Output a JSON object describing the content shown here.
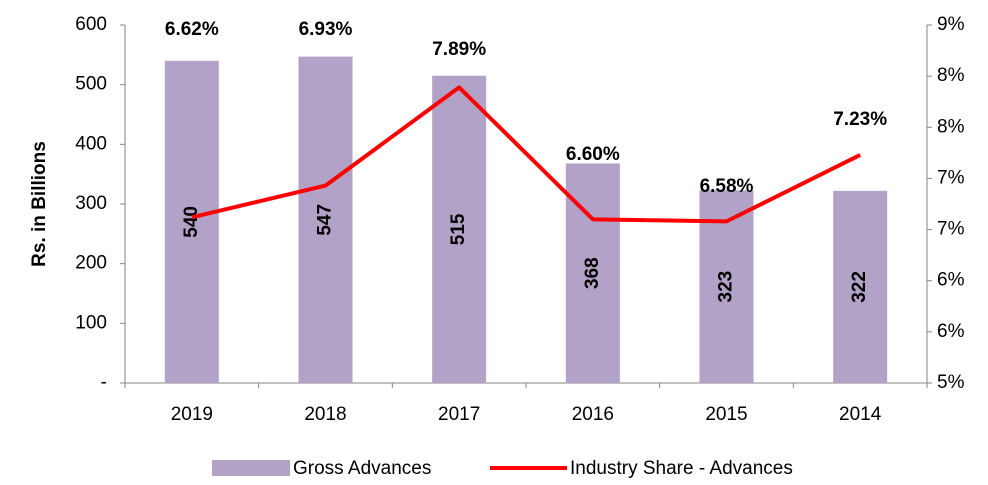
{
  "chart_data": {
    "type": "bar",
    "categories": [
      "2019",
      "2018",
      "2017",
      "2016",
      "2015",
      "2014"
    ],
    "y_label": "Rs. in Billions",
    "series": [
      {
        "name": "Gross Advances",
        "color": "#b3a2c7",
        "values": [
          540,
          547,
          515,
          368,
          323,
          322
        ]
      },
      {
        "name": "Industry Share - Advances",
        "type": "line",
        "axis": "y2",
        "color": "#ff0000",
        "values": [
          6.62,
          6.93,
          7.89,
          6.6,
          6.58,
          7.23
        ],
        "value_labels": [
          "6.62%",
          "6.93%",
          "7.89%",
          "6.60%",
          "6.58%",
          "7.23%"
        ]
      }
    ],
    "ylim": [
      0,
      600
    ],
    "yticks": [
      {
        "value": 0,
        "label": "-"
      },
      100,
      200,
      300,
      400,
      500,
      600
    ],
    "y2lim": [
      5,
      8.5
    ],
    "y2ticks": [
      {
        "value": 5,
        "label": "5%"
      },
      {
        "value": 5.5,
        "label": "6%"
      },
      {
        "value": 6,
        "label": "6%"
      },
      {
        "value": 6.5,
        "label": "7%"
      },
      {
        "value": 7,
        "label": "7%"
      },
      {
        "value": 7.5,
        "label": "8%"
      },
      {
        "value": 8,
        "label": "8%"
      },
      {
        "value": 8.5,
        "label": "9%"
      }
    ],
    "legend": "bottom"
  }
}
